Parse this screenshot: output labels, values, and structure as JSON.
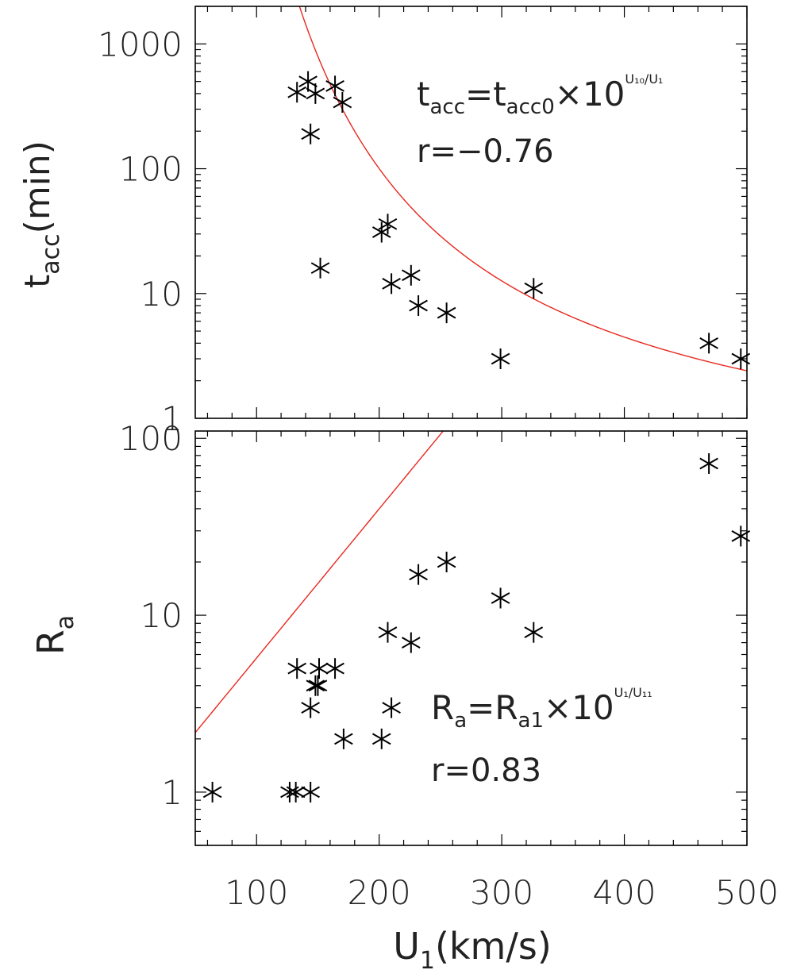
{
  "chart_data": [
    {
      "type": "scatter",
      "panel": "top",
      "ylabel": "t_acc(min)",
      "ylabel_parts": {
        "base": "t",
        "sub": "acc",
        "rest": "(min)"
      },
      "yscale": "log",
      "ylim": [
        1,
        2000
      ],
      "xlim": [
        50,
        500
      ],
      "yticks": [
        1,
        10,
        100,
        1000
      ],
      "ytick_labels": [
        "1",
        "10",
        "100",
        "1000"
      ],
      "points": [
        [
          133,
          410
        ],
        [
          142,
          500
        ],
        [
          148,
          400
        ],
        [
          164,
          460
        ],
        [
          170,
          340
        ],
        [
          144,
          190
        ],
        [
          152,
          16
        ],
        [
          202,
          31
        ],
        [
          207,
          36
        ],
        [
          210,
          12
        ],
        [
          226,
          14
        ],
        [
          232,
          8
        ],
        [
          255,
          7
        ],
        [
          299,
          3
        ],
        [
          326,
          11
        ],
        [
          469,
          4
        ],
        [
          495,
          3
        ]
      ],
      "fit": {
        "type": "exp10_inverse",
        "A": 0.2,
        "U": 540,
        "color": "#e8281e"
      },
      "annotation": {
        "formula": "t_acc=t_acc0×10^(U10/U1)",
        "r_text": "r=−0.76"
      },
      "formula_parts": {
        "t": "t",
        "acc": "acc",
        "eq": "=",
        "acc0": "acc0",
        "times": "×10",
        "sup": "U₁₀/U₁"
      },
      "point_color": "#000000"
    },
    {
      "type": "scatter",
      "panel": "bottom",
      "ylabel": "R_a",
      "ylabel_parts": {
        "base": "R",
        "sub": "a"
      },
      "xlabel": "U_1(km/s)",
      "xlabel_parts": {
        "base": "U",
        "sub": "1",
        "rest": "(km/s)"
      },
      "yscale": "log",
      "ylim": [
        0.5,
        110
      ],
      "xlim": [
        50,
        500
      ],
      "xticks": [
        100,
        200,
        300,
        400,
        500
      ],
      "xtick_labels": [
        "100",
        "200",
        "300",
        "400",
        "500"
      ],
      "yticks": [
        1,
        10,
        100
      ],
      "ytick_labels": [
        "1",
        "10",
        "100"
      ],
      "points": [
        [
          64,
          1
        ],
        [
          127,
          1
        ],
        [
          132,
          1
        ],
        [
          144,
          1
        ],
        [
          133,
          5
        ],
        [
          151,
          5
        ],
        [
          164,
          5
        ],
        [
          148,
          4
        ],
        [
          150,
          4
        ],
        [
          144,
          3
        ],
        [
          171,
          2
        ],
        [
          202,
          2
        ],
        [
          210,
          3
        ],
        [
          207,
          8
        ],
        [
          226,
          7
        ],
        [
          232,
          17
        ],
        [
          255,
          20
        ],
        [
          299,
          12.5
        ],
        [
          326,
          8
        ],
        [
          469,
          72
        ],
        [
          495,
          28
        ]
      ],
      "fit": {
        "type": "exp10_linear",
        "A": 0.822,
        "U": 118.6,
        "color": "#e8281e"
      },
      "annotation": {
        "formula": "R_a=R_a1×10^(U1/U11)",
        "r_text": "r=0.83"
      },
      "formula_parts": {
        "R": "R",
        "a": "a",
        "eq": "=",
        "a1": "a1",
        "times": "×10",
        "sup": "U₁/U₁₁"
      },
      "point_color": "#000000"
    }
  ]
}
